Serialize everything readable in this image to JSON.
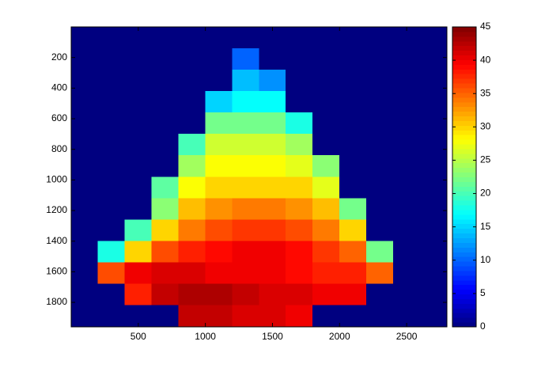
{
  "chart_data": {
    "type": "heatmap",
    "colormap": "jet",
    "grid": false,
    "y_reversed": true,
    "x": [
      100,
      300,
      500,
      700,
      900,
      1100,
      1300,
      1500,
      1700,
      1900,
      2100,
      2300,
      2500,
      2700
    ],
    "y": [
      70,
      210,
      350,
      490,
      630,
      770,
      910,
      1050,
      1190,
      1330,
      1470,
      1610,
      1750,
      1890
    ],
    "z": [
      [
        0,
        0,
        0,
        0,
        0,
        0,
        0,
        0,
        0,
        0,
        0,
        0,
        0,
        0
      ],
      [
        0,
        0,
        0,
        0,
        0,
        0,
        10,
        0,
        0,
        0,
        0,
        0,
        0,
        0
      ],
      [
        0,
        0,
        0,
        0,
        0,
        0,
        14,
        12,
        0,
        0,
        0,
        0,
        0,
        0
      ],
      [
        0,
        0,
        0,
        0,
        0,
        15,
        17,
        17,
        0,
        0,
        0,
        0,
        0,
        0
      ],
      [
        0,
        0,
        0,
        0,
        0,
        22,
        22,
        22,
        18,
        0,
        0,
        0,
        0,
        0
      ],
      [
        0,
        0,
        0,
        0,
        20,
        26,
        26,
        26,
        24,
        0,
        0,
        0,
        0,
        0
      ],
      [
        0,
        0,
        0,
        0,
        24,
        28,
        28,
        28,
        27,
        23,
        0,
        0,
        0,
        0
      ],
      [
        0,
        0,
        0,
        21,
        28,
        30,
        30,
        30,
        30,
        27,
        0,
        0,
        0,
        0
      ],
      [
        0,
        0,
        0,
        23,
        31,
        33,
        34,
        34,
        33,
        31,
        22,
        0,
        0,
        0
      ],
      [
        0,
        0,
        20,
        30,
        34,
        36,
        37,
        37,
        36,
        34,
        30,
        0,
        0,
        0
      ],
      [
        0,
        18,
        30,
        36,
        38,
        39,
        40,
        40,
        39,
        37,
        35,
        22,
        0,
        0
      ],
      [
        0,
        36,
        40,
        41,
        41,
        40,
        40,
        40,
        39,
        38,
        38,
        35,
        0,
        0
      ],
      [
        0,
        0,
        38,
        42,
        43,
        43,
        42,
        41,
        41,
        40,
        40,
        0,
        0,
        0
      ],
      [
        0,
        0,
        0,
        0,
        42,
        42,
        41,
        41,
        40,
        0,
        0,
        0,
        0,
        0
      ]
    ],
    "xlim": [
      0,
      2800
    ],
    "xticks": [
      500,
      1000,
      1500,
      2000,
      2500
    ],
    "ylim": [
      0,
      1960
    ],
    "yticks": [
      200,
      400,
      600,
      800,
      1000,
      1200,
      1400,
      1600,
      1800
    ],
    "clim": [
      0,
      45
    ],
    "cticks": [
      0,
      5,
      10,
      15,
      20,
      25,
      30,
      35,
      40,
      45
    ]
  }
}
